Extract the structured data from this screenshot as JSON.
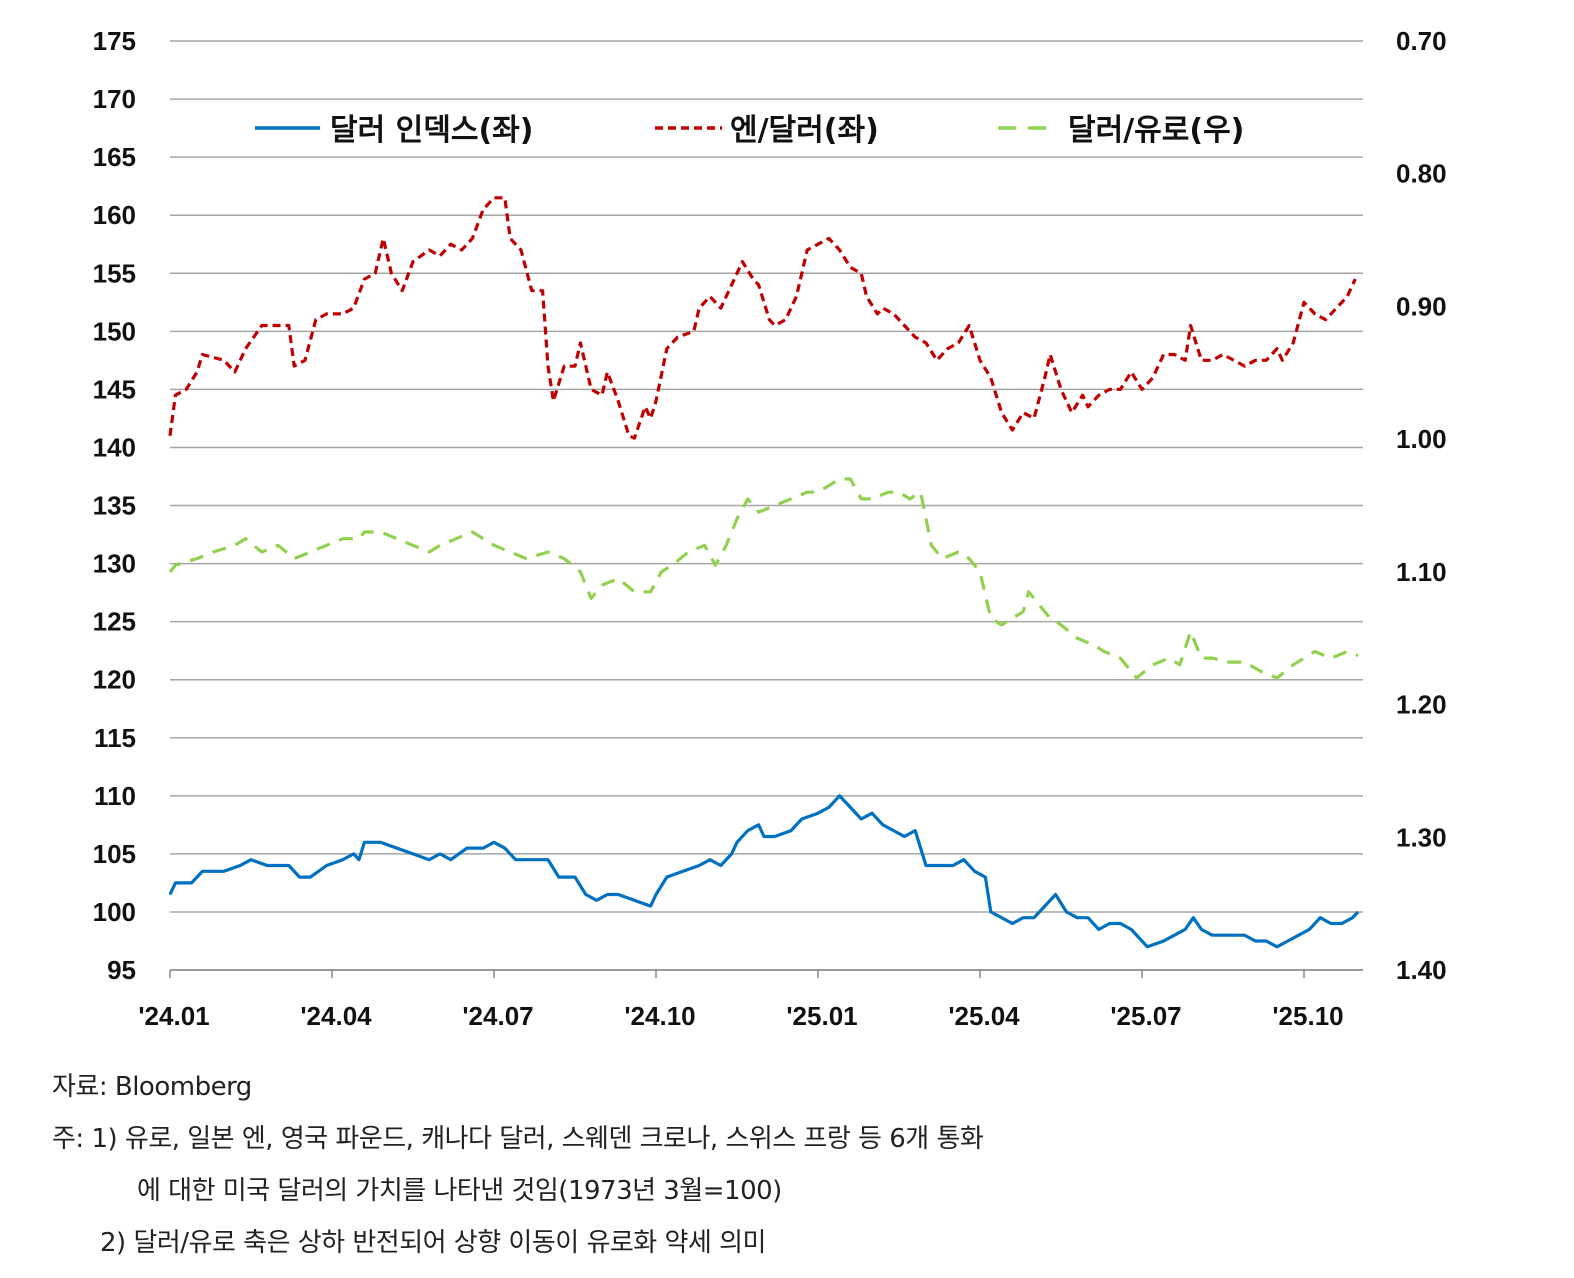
{
  "chart_data": {
    "type": "line",
    "title": "",
    "x_unit": "months since 2024.01",
    "x_ticks": [
      {
        "m": 0,
        "label": "'24.01"
      },
      {
        "m": 3,
        "label": "'24.04"
      },
      {
        "m": 6,
        "label": "'24.07"
      },
      {
        "m": 9,
        "label": "'24.10"
      },
      {
        "m": 12,
        "label": "'25.01"
      },
      {
        "m": 15,
        "label": "'25.04"
      },
      {
        "m": 18,
        "label": "'25.07"
      },
      {
        "m": 21,
        "label": "'25.10"
      }
    ],
    "y_left": {
      "range": [
        95,
        175
      ],
      "ticks": [
        "95",
        "100",
        "105",
        "110",
        "115",
        "120",
        "125",
        "130",
        "135",
        "140",
        "145",
        "150",
        "155",
        "160",
        "165",
        "170",
        "175"
      ]
    },
    "y_right": {
      "range": [
        0.7,
        1.4
      ],
      "inverted": true,
      "ticks": [
        "0.70",
        "0.80",
        "0.90",
        "1.00",
        "1.10",
        "1.20",
        "1.30",
        "1.40"
      ]
    },
    "grid": true,
    "legend_position": "top",
    "series": [
      {
        "name": "달러 인덱스(좌)",
        "axis": "left",
        "color": "#0070C0",
        "style": "solid",
        "x": [
          0,
          0.1,
          0.4,
          0.6,
          1.0,
          1.3,
          1.5,
          1.8,
          2.2,
          2.4,
          2.6,
          2.9,
          3.2,
          3.4,
          3.5,
          3.6,
          3.9,
          4.2,
          4.5,
          4.8,
          5.0,
          5.2,
          5.5,
          5.8,
          6.0,
          6.2,
          6.4,
          6.7,
          7.0,
          7.2,
          7.5,
          7.7,
          7.9,
          8.1,
          8.3,
          8.6,
          8.9,
          9.0,
          9.2,
          9.5,
          9.8,
          10.0,
          10.2,
          10.4,
          10.5,
          10.7,
          10.9,
          11.0,
          11.2,
          11.5,
          11.7,
          12.0,
          12.2,
          12.4,
          12.6,
          12.8,
          13.0,
          13.2,
          13.4,
          13.6,
          13.8,
          14.0,
          14.2,
          14.5,
          14.7,
          14.9,
          15.1,
          15.2,
          15.4,
          15.6,
          15.8,
          16.0,
          16.2,
          16.4,
          16.6,
          16.8,
          17.0,
          17.2,
          17.4,
          17.6,
          17.8,
          18.0,
          18.1,
          18.4,
          18.6,
          18.8,
          18.95,
          19.1,
          19.3,
          19.6,
          19.9,
          20.1,
          20.3,
          20.5,
          20.7,
          20.9,
          21.1,
          21.3,
          21.5,
          21.7,
          21.9,
          22.0
        ],
        "values": [
          101.5,
          102.5,
          102.5,
          103.5,
          103.5,
          104,
          104.5,
          104,
          104,
          103,
          103,
          104,
          104.5,
          105,
          104.5,
          106,
          106,
          105.5,
          105,
          104.5,
          105,
          104.5,
          105.5,
          105.5,
          106,
          105.5,
          104.5,
          104.5,
          104.5,
          103,
          103,
          101.5,
          101,
          101.5,
          101.5,
          101,
          100.5,
          101.5,
          103,
          103.5,
          104,
          104.5,
          104,
          105,
          106,
          107,
          107.5,
          106.5,
          106.5,
          107,
          108,
          108.5,
          109,
          110,
          109,
          108,
          108.5,
          107.5,
          107,
          106.5,
          107,
          104,
          104,
          104,
          104.5,
          103.5,
          103,
          100,
          99.5,
          99,
          99.5,
          99.5,
          100.5,
          101.5,
          100,
          99.5,
          99.5,
          98.5,
          99,
          99,
          98.5,
          97.5,
          97,
          97.5,
          98,
          98.5,
          99.5,
          98.5,
          98,
          98,
          98,
          97.5,
          97.5,
          97,
          97.5,
          98,
          98.5,
          99.5,
          99,
          99,
          99.5,
          100
        ]
      },
      {
        "name": "엔/달러(좌)",
        "axis": "left",
        "color": "#C00000",
        "style": "dashed",
        "x": [
          0,
          0.1,
          0.3,
          0.5,
          0.6,
          1.0,
          1.2,
          1.4,
          1.7,
          2.0,
          2.2,
          2.3,
          2.5,
          2.7,
          2.9,
          3.2,
          3.4,
          3.6,
          3.8,
          3.95,
          4.1,
          4.3,
          4.5,
          4.8,
          5.0,
          5.2,
          5.4,
          5.6,
          5.8,
          6.0,
          6.2,
          6.3,
          6.5,
          6.7,
          6.9,
          7.0,
          7.1,
          7.3,
          7.5,
          7.6,
          7.8,
          8.0,
          8.1,
          8.3,
          8.5,
          8.6,
          8.8,
          8.9,
          9.0,
          9.2,
          9.4,
          9.7,
          9.8,
          10.0,
          10.2,
          10.4,
          10.5,
          10.6,
          10.8,
          10.9,
          11.1,
          11.2,
          11.4,
          11.6,
          11.8,
          12.0,
          12.2,
          12.4,
          12.6,
          12.8,
          12.9,
          13.1,
          13.2,
          13.4,
          13.6,
          13.8,
          14.0,
          14.2,
          14.4,
          14.6,
          14.8,
          14.9,
          15.0,
          15.2,
          15.4,
          15.6,
          15.8,
          16.0,
          16.2,
          16.3,
          16.5,
          16.7,
          16.9,
          17.0,
          17.2,
          17.4,
          17.6,
          17.8,
          18.0,
          18.2,
          18.4,
          18.6,
          18.8,
          18.9,
          19.1,
          19.3,
          19.5,
          19.7,
          19.9,
          20.1,
          20.3,
          20.5,
          20.6,
          20.8,
          21.0,
          21.2,
          21.4,
          21.6,
          21.8,
          21.95
        ],
        "values": [
          141,
          144.5,
          145,
          146.5,
          148,
          147.5,
          146.5,
          148.5,
          150.5,
          150.5,
          150.5,
          147,
          147.5,
          151,
          151.5,
          151.5,
          152,
          154.5,
          155,
          158,
          155,
          153.5,
          156,
          157,
          156.5,
          157.5,
          157,
          158,
          160.5,
          161.5,
          161.5,
          158,
          157,
          153.5,
          153.5,
          147,
          144,
          147,
          147,
          149,
          145,
          144.5,
          146.5,
          144,
          141,
          140.8,
          143.5,
          142.5,
          144,
          148.5,
          149.5,
          150,
          152,
          153,
          152,
          154,
          155,
          156,
          154.5,
          154,
          151,
          150.5,
          151,
          153,
          157,
          157.5,
          158,
          157,
          155.5,
          155,
          153,
          151.5,
          152,
          151.5,
          150.5,
          149.5,
          149,
          147.5,
          148.5,
          149,
          150.5,
          149,
          147.5,
          146,
          143,
          141.5,
          143,
          142.5,
          146,
          148,
          145,
          143,
          144.5,
          143.5,
          144.5,
          145,
          145,
          146.5,
          145,
          146,
          148,
          148,
          147.5,
          150.5,
          147.5,
          147.5,
          148,
          147.5,
          147,
          147.5,
          147.5,
          148.5,
          147.5,
          149,
          152.5,
          151.5,
          151,
          152,
          153,
          154.5
        ]
      },
      {
        "name": "달러/유로(우)",
        "axis": "right",
        "color": "#92D050",
        "style": "dashed",
        "x": [
          0,
          0.1,
          0.5,
          0.8,
          1.2,
          1.4,
          1.7,
          2.0,
          2.3,
          2.6,
          2.9,
          3.2,
          3.5,
          3.6,
          3.9,
          4.2,
          4.5,
          4.8,
          5.0,
          5.3,
          5.6,
          5.8,
          6.0,
          6.3,
          6.6,
          7.0,
          7.3,
          7.6,
          7.8,
          8.0,
          8.3,
          8.6,
          8.9,
          9.1,
          9.3,
          9.6,
          9.9,
          10.1,
          10.3,
          10.5,
          10.7,
          10.9,
          11.2,
          11.5,
          11.8,
          12.0,
          12.2,
          12.4,
          12.6,
          12.8,
          13.0,
          13.3,
          13.5,
          13.7,
          13.9,
          14.1,
          14.3,
          14.6,
          14.8,
          15.0,
          15.2,
          15.4,
          15.6,
          15.8,
          15.9,
          16.1,
          16.3,
          16.5,
          16.8,
          17.1,
          17.3,
          17.6,
          17.9,
          18.2,
          18.5,
          18.7,
          18.9,
          19.1,
          19.3,
          19.6,
          19.9,
          20.2,
          20.5,
          20.8,
          21.0,
          21.2,
          21.5,
          21.8,
          22.0
        ],
        "values": [
          1.1,
          1.095,
          1.09,
          1.085,
          1.08,
          1.075,
          1.085,
          1.08,
          1.09,
          1.085,
          1.08,
          1.075,
          1.075,
          1.07,
          1.07,
          1.075,
          1.08,
          1.085,
          1.08,
          1.075,
          1.07,
          1.075,
          1.08,
          1.085,
          1.09,
          1.085,
          1.09,
          1.1,
          1.12,
          1.11,
          1.105,
          1.115,
          1.115,
          1.1,
          1.095,
          1.085,
          1.08,
          1.095,
          1.08,
          1.06,
          1.045,
          1.055,
          1.05,
          1.045,
          1.04,
          1.04,
          1.035,
          1.03,
          1.03,
          1.045,
          1.045,
          1.04,
          1.04,
          1.045,
          1.04,
          1.08,
          1.09,
          1.085,
          1.09,
          1.1,
          1.135,
          1.14,
          1.135,
          1.13,
          1.115,
          1.125,
          1.135,
          1.14,
          1.15,
          1.155,
          1.16,
          1.165,
          1.18,
          1.17,
          1.165,
          1.17,
          1.145,
          1.165,
          1.165,
          1.168,
          1.168,
          1.175,
          1.18,
          1.17,
          1.165,
          1.16,
          1.165,
          1.16,
          1.163
        ]
      }
    ]
  },
  "notes": {
    "source": "자료: Bloomberg",
    "note1_line1": "주: 1)  유로, 일본 엔, 영국 파운드, 캐나다 달러, 스웨덴 크로나, 스위스 프랑 등 6개 통화",
    "note1_line2": "에 대한 미국 달러의 가치를 나타낸 것임(1973년 3월=100)",
    "note2": "2) 달러/유로 축은 상하 반전되어 상향 이동이 유로화 약세 의미"
  }
}
